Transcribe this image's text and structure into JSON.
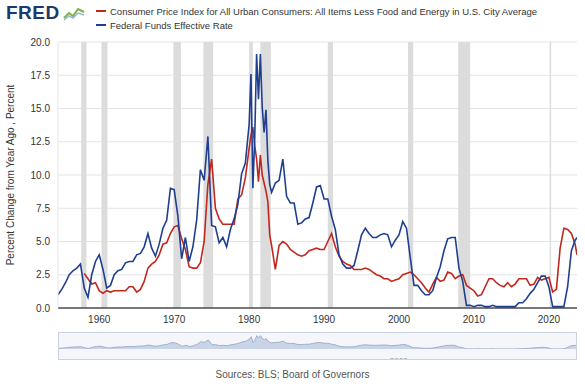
{
  "chart_data": {
    "type": "line",
    "logo": "FRED",
    "y_label": "Percent Change from Year Ago , Percent",
    "source": "Sources: BLS; Board of Governors",
    "legend": "top",
    "grid": true,
    "xlim": [
      1954.5,
      2023.75
    ],
    "xticks": [
      1960,
      1970,
      1980,
      1990,
      2000,
      2010,
      2020
    ],
    "ylim": [
      0,
      20
    ],
    "yticks": [
      {
        "value": 0,
        "label": "0.0"
      },
      2.5,
      {
        "value": 5,
        "label": "5.0"
      },
      7.5,
      {
        "value": 10,
        "label": "10.0"
      },
      12.5,
      {
        "value": 15,
        "label": "15.0"
      },
      17.5,
      {
        "value": 20,
        "label": "20.0"
      }
    ],
    "recessions": [
      [
        1957.6,
        1958.3
      ],
      [
        1960.3,
        1961.1
      ],
      [
        1969.9,
        1970.9
      ],
      [
        1973.9,
        1975.2
      ],
      [
        1980.0,
        1980.5
      ],
      [
        1981.5,
        1982.9
      ],
      [
        1990.5,
        1991.2
      ],
      [
        2001.2,
        2001.9
      ],
      [
        2007.9,
        2009.5
      ],
      [
        2020.1,
        2020.3
      ]
    ],
    "navigator_ticks": [
      2000
    ],
    "x": [
      1954.5,
      1955,
      1955.5,
      1956,
      1956.5,
      1957,
      1957.5,
      1958,
      1958.5,
      1959,
      1959.5,
      1960,
      1960.5,
      1961,
      1961.5,
      1962,
      1962.5,
      1963,
      1963.5,
      1964,
      1964.5,
      1965,
      1965.5,
      1966,
      1966.5,
      1967,
      1967.5,
      1968,
      1968.5,
      1969,
      1969.5,
      1970,
      1970.5,
      1971,
      1971.5,
      1972,
      1972.5,
      1973,
      1973.5,
      1974,
      1974.5,
      1975,
      1975.5,
      1976,
      1976.5,
      1977,
      1977.5,
      1978,
      1978.5,
      1979,
      1979.5,
      1980,
      1980.25,
      1980.5,
      1980.75,
      1981,
      1981.25,
      1981.5,
      1981.75,
      1982,
      1982.25,
      1982.5,
      1982.75,
      1983,
      1983.5,
      1984,
      1984.5,
      1985,
      1985.5,
      1986,
      1986.5,
      1987,
      1987.5,
      1988,
      1988.5,
      1989,
      1989.5,
      1990,
      1990.5,
      1991,
      1991.5,
      1992,
      1992.5,
      1993,
      1993.5,
      1994,
      1994.5,
      1995,
      1995.5,
      1996,
      1996.5,
      1997,
      1997.5,
      1998,
      1998.5,
      1999,
      1999.5,
      2000,
      2000.5,
      2001,
      2001.5,
      2002,
      2002.5,
      2003,
      2003.5,
      2004,
      2004.5,
      2005,
      2005.5,
      2006,
      2006.5,
      2007,
      2007.5,
      2008,
      2008.5,
      2009,
      2009.5,
      2010,
      2010.5,
      2011,
      2011.5,
      2012,
      2012.5,
      2013,
      2013.5,
      2014,
      2014.5,
      2015,
      2015.5,
      2016,
      2016.5,
      2017,
      2017.5,
      2018,
      2018.5,
      2019,
      2019.5,
      2020,
      2020.5,
      2021,
      2021.5,
      2022,
      2022.5,
      2023,
      2023.5,
      2023.75
    ],
    "series": [
      {
        "name": "Consumer Price Index for All Urban Consumers: All Items Less Food and Energy in U.S. City Average",
        "color": "#c0281e",
        "values": [
          null,
          null,
          null,
          null,
          null,
          null,
          null,
          2.6,
          2.2,
          1.8,
          1.9,
          1.3,
          1.1,
          1.3,
          1.2,
          1.3,
          1.3,
          1.3,
          1.3,
          1.6,
          1.6,
          1.2,
          1.4,
          2.0,
          3.0,
          3.3,
          3.5,
          4.0,
          4.8,
          4.9,
          5.6,
          6.1,
          6.2,
          5.2,
          4.4,
          3.1,
          3.0,
          3.0,
          3.4,
          5.0,
          9.3,
          11.2,
          7.5,
          6.7,
          6.3,
          6.3,
          6.3,
          6.3,
          8.2,
          8.5,
          9.8,
          12.0,
          13.0,
          13.6,
          12.2,
          11.2,
          9.5,
          11.5,
          10.0,
          9.4,
          8.8,
          8.0,
          5.5,
          4.7,
          2.9,
          4.7,
          5.0,
          4.8,
          4.4,
          4.2,
          4.0,
          3.9,
          4.0,
          4.3,
          4.4,
          4.5,
          4.4,
          4.4,
          5.0,
          5.6,
          4.6,
          3.9,
          3.5,
          3.3,
          3.2,
          2.9,
          2.9,
          2.9,
          3.0,
          2.9,
          2.7,
          2.5,
          2.4,
          2.2,
          2.2,
          2.0,
          2.1,
          2.2,
          2.5,
          2.6,
          2.7,
          2.5,
          2.2,
          1.9,
          1.5,
          1.2,
          1.8,
          2.3,
          2.0,
          2.1,
          2.7,
          2.6,
          2.2,
          2.4,
          2.5,
          1.7,
          1.5,
          1.3,
          0.9,
          1.0,
          1.6,
          2.2,
          2.2,
          1.9,
          1.7,
          1.6,
          1.9,
          1.6,
          1.8,
          2.2,
          2.2,
          2.2,
          1.7,
          1.8,
          2.3,
          2.1,
          2.2,
          2.3,
          1.2,
          1.4,
          4.5,
          6.0,
          5.9,
          5.6,
          4.8,
          4.0
        ]
      },
      {
        "name": "Federal Funds Effective Rate",
        "color": "#1f3f8f",
        "values": [
          1.0,
          1.4,
          1.9,
          2.5,
          2.8,
          3.0,
          3.3,
          1.5,
          0.8,
          2.5,
          3.5,
          4.0,
          2.9,
          1.5,
          1.7,
          2.5,
          2.8,
          2.9,
          3.4,
          3.5,
          3.5,
          4.0,
          4.1,
          4.6,
          5.6,
          4.5,
          3.9,
          4.8,
          6.0,
          6.6,
          9.0,
          8.9,
          6.9,
          3.7,
          5.3,
          3.5,
          4.6,
          6.6,
          10.4,
          9.6,
          12.9,
          6.2,
          6.1,
          4.9,
          5.3,
          4.6,
          5.9,
          6.7,
          7.8,
          10.1,
          10.9,
          13.8,
          17.6,
          9.0,
          12.8,
          19.1,
          15.7,
          19.1,
          15.1,
          13.2,
          14.9,
          11.1,
          9.3,
          8.7,
          9.4,
          9.6,
          11.2,
          8.4,
          7.9,
          7.9,
          6.3,
          6.4,
          6.7,
          6.8,
          7.9,
          9.1,
          9.2,
          8.2,
          8.2,
          6.9,
          5.9,
          4.0,
          3.3,
          3.0,
          3.0,
          3.2,
          4.3,
          5.5,
          6.0,
          5.6,
          5.3,
          5.3,
          5.5,
          5.6,
          5.5,
          4.6,
          5.1,
          5.5,
          6.5,
          6.0,
          3.8,
          1.7,
          1.7,
          1.3,
          1.0,
          1.0,
          1.3,
          2.3,
          3.1,
          4.3,
          5.2,
          5.3,
          5.3,
          3.0,
          2.0,
          0.2,
          0.2,
          0.1,
          0.2,
          0.2,
          0.1,
          0.1,
          0.2,
          0.1,
          0.1,
          0.1,
          0.1,
          0.1,
          0.1,
          0.4,
          0.4,
          0.7,
          1.1,
          1.4,
          1.9,
          2.4,
          2.4,
          1.6,
          0.1,
          0.1,
          0.1,
          0.1,
          1.6,
          4.3,
          5.1,
          5.3
        ]
      }
    ]
  }
}
